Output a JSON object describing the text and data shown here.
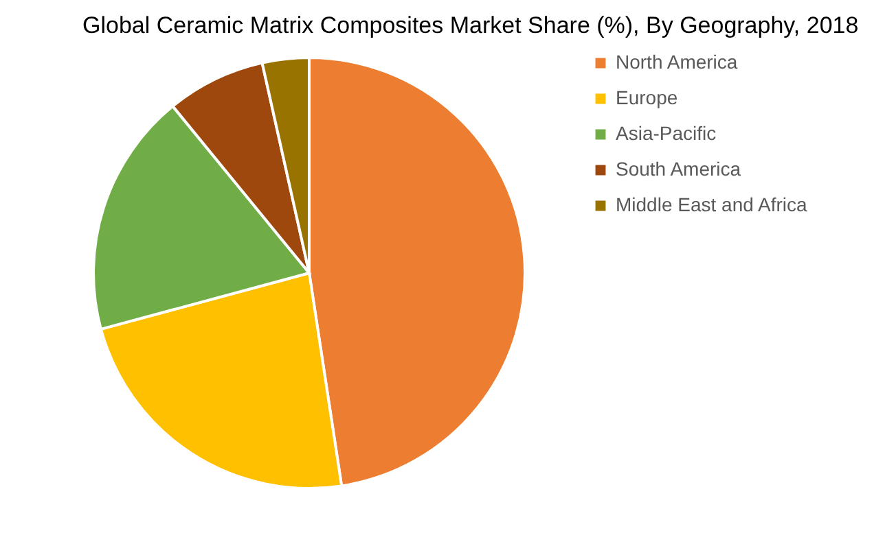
{
  "chart_data": {
    "type": "pie",
    "title": "Global Ceramic Matrix Composites Market Share (%), By Geography, 2018",
    "categories": [
      "North America",
      "Europe",
      "Asia-Pacific",
      "South America",
      "Middle East and Africa"
    ],
    "values": [
      47.6,
      23.2,
      18.3,
      7.4,
      3.5
    ],
    "colors": [
      "#ed7d31",
      "#ffc000",
      "#70ad47",
      "#9e480e",
      "#997300"
    ],
    "legend": "right"
  }
}
